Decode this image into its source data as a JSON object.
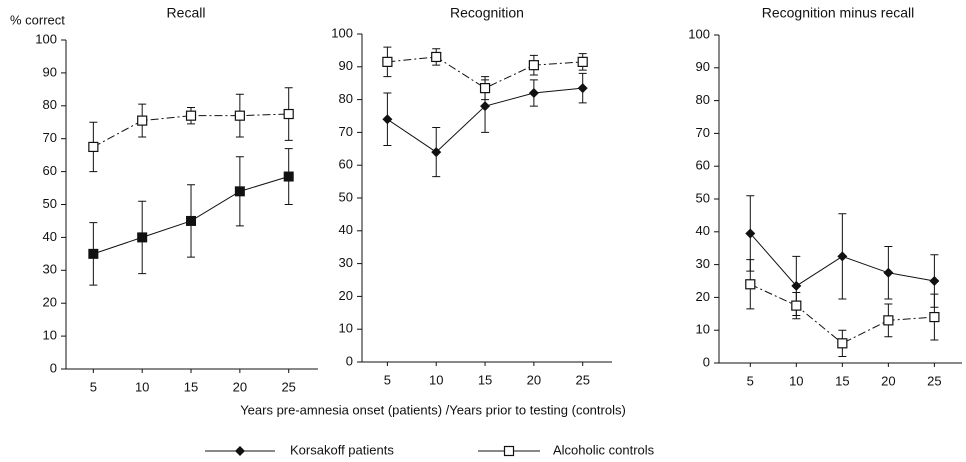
{
  "x_label": "Years pre-amnesia onset (patients) /Years prior to testing (controls)",
  "chart_data": [
    {
      "type": "line",
      "title": "Recall",
      "ylabel": "% correct",
      "x": [
        5,
        10,
        15,
        20,
        25
      ],
      "xlim": [
        2.2,
        28
      ],
      "xticks": [
        5,
        10,
        15,
        20,
        25
      ],
      "ylim": [
        0,
        100
      ],
      "yticks": [
        0,
        10,
        20,
        30,
        40,
        50,
        60,
        70,
        80,
        90,
        100
      ],
      "series": [
        {
          "name": "Korsakoff patients",
          "color": "#111111",
          "marker": "square",
          "dash": false,
          "values": [
            35,
            40,
            45,
            54,
            58.5
          ],
          "errors": [
            9.5,
            11,
            11,
            10.5,
            8.5
          ]
        },
        {
          "name": "Alcoholic controls",
          "color": "#111111",
          "marker": "open-square",
          "dash": true,
          "values": [
            67.5,
            75.5,
            77,
            77,
            77.5
          ],
          "errors": [
            7.5,
            5,
            2.5,
            6.5,
            8
          ]
        }
      ]
    },
    {
      "type": "line",
      "title": "Recognition",
      "x": [
        5,
        10,
        15,
        20,
        25
      ],
      "xlim": [
        2.4,
        28
      ],
      "xticks": [
        5,
        10,
        15,
        20,
        25
      ],
      "ylim": [
        0,
        100
      ],
      "yticks": [
        0,
        10,
        20,
        30,
        40,
        50,
        60,
        70,
        80,
        90,
        100
      ],
      "series": [
        {
          "name": "Korsakoff patients",
          "color": "#111111",
          "marker": "diamond",
          "dash": false,
          "values": [
            74,
            64,
            78,
            82,
            83.5
          ],
          "errors": [
            8,
            7.5,
            8,
            4,
            4.5
          ]
        },
        {
          "name": "Alcoholic controls",
          "color": "#111111",
          "marker": "open-square",
          "dash": true,
          "values": [
            91.5,
            93,
            83.5,
            90.5,
            91.5
          ],
          "errors": [
            4.5,
            2.5,
            3.5,
            3,
            2.5
          ]
        }
      ]
    },
    {
      "type": "line",
      "title": "Recognition minus recall",
      "x": [
        5,
        10,
        15,
        20,
        25
      ],
      "xlim": [
        1.6,
        28
      ],
      "xticks": [
        5,
        10,
        15,
        20,
        25
      ],
      "ylim": [
        0,
        100
      ],
      "yticks": [
        0,
        10,
        20,
        30,
        40,
        50,
        60,
        70,
        80,
        90,
        100
      ],
      "series": [
        {
          "name": "Korsakoff patients",
          "color": "#111111",
          "marker": "diamond",
          "dash": false,
          "values": [
            39.5,
            23.5,
            32.5,
            27.5,
            25
          ],
          "errors": [
            11.5,
            9,
            13,
            8,
            8
          ]
        },
        {
          "name": "Alcoholic controls",
          "color": "#111111",
          "marker": "open-square",
          "dash": true,
          "values": [
            24,
            17.5,
            6,
            13,
            14
          ],
          "errors": [
            7.5,
            4,
            4,
            5,
            7
          ]
        }
      ]
    }
  ]
}
